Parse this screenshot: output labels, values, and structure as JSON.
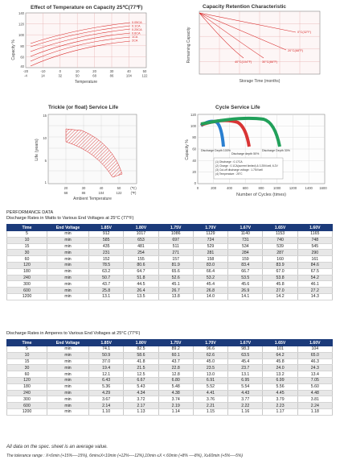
{
  "charts": {
    "temp_capacity": {
      "title": "Effect of Temperature on Capacity  25℃(77℉)",
      "ylabel": "Capacity %",
      "xlabel": "Temperature",
      "y_ticks": [
        "140",
        "120",
        "100",
        "80",
        "60",
        "40"
      ],
      "x_ticks_c": [
        "-20",
        "-10",
        "0",
        "10",
        "20",
        "30",
        "40",
        "50"
      ],
      "x_ticks_f": [
        "-4",
        "14",
        "32",
        "50",
        "68",
        "86",
        "104",
        "122"
      ],
      "series_labels": [
        "0.05CA",
        "0.1CA",
        "0.25CA",
        "0.6CA",
        "1CA",
        "2CA"
      ],
      "series_colors": [
        "#e23b3b",
        "#e23b3b",
        "#e23b3b",
        "#e23b3b",
        "#e23b3b",
        "#e23b3b"
      ]
    },
    "capacity_retention": {
      "title": "Capacity Retention Characteristic",
      "ylabel": "Remaining Capacity",
      "xlabel": "Storage Time (months)",
      "series_labels": [
        "0°C(32°F)",
        "20°C(68°F)",
        "30°C(86°F)",
        "40°C(104°F)"
      ]
    },
    "float_life": {
      "title": "Trickle (or float) Service Life",
      "ylabel": "Life (years)",
      "xlabel": "Ambient Temperature",
      "y_ticks": [
        "15",
        "10",
        "5",
        "1"
      ],
      "x_ticks_c": [
        "20",
        "30",
        "40",
        "50",
        "(℃)"
      ],
      "x_ticks_f": [
        "68",
        "86",
        "104",
        "122",
        "(℉)"
      ]
    },
    "cycle_life": {
      "title": "Cycle Service Life",
      "ylabel": "Capacity %",
      "xlabel": "Number of Cycles (times)",
      "y_ticks": [
        "120",
        "100",
        "80",
        "60",
        "40",
        "20",
        "0"
      ],
      "x_ticks": [
        "0",
        "200",
        "400",
        "600",
        "800",
        "1000",
        "1200",
        "1400",
        "1600"
      ],
      "series_labels": [
        "Discharge Depth 100%",
        "Discharge depth 50%",
        "Discharge Depth 30%"
      ],
      "series_colors": [
        "#2a7fd0",
        "#d93434",
        "#21a05a"
      ],
      "legend": [
        "(1) Discharge : 0.17CA",
        "(2) Charge : 0.1CA(current limited) & 0.25V/cell, 6.2V",
        "(3) Cut-off discharge voltage : 1.75V/cell",
        "(4) Temperature : 25°C"
      ]
    }
  },
  "performance_title": "PERFORMANCE DATA",
  "table_watts": {
    "caption": "Discharge Rates in Watts to Various End Voltages at 25°C (77°F)",
    "headers": [
      "Time",
      "End Voltage",
      "1.85V",
      "1.80V",
      "1.75V",
      "1.70V",
      "1.67V",
      "1.65V",
      "1.60V"
    ],
    "rows": [
      [
        "5",
        "min",
        "912",
        "1017",
        "1086",
        "1129",
        "1140",
        "1153",
        "1165"
      ],
      [
        "10",
        "min",
        "585",
        "653",
        "697",
        "724",
        "731",
        "740",
        "748"
      ],
      [
        "15",
        "min",
        "435",
        "481",
        "511",
        "529",
        "534",
        "539",
        "545"
      ],
      [
        "30",
        "min",
        "231",
        "254",
        "271",
        "281",
        "284",
        "287",
        "290"
      ],
      [
        "60",
        "min",
        "152",
        "155",
        "157",
        "158",
        "159",
        "160",
        "161"
      ],
      [
        "120",
        "min",
        "78.5",
        "80.6",
        "81.9",
        "83.0",
        "83.4",
        "83.9",
        "84.6"
      ],
      [
        "180",
        "min",
        "63.2",
        "64.7",
        "65.6",
        "66.4",
        "66.7",
        "67.0",
        "67.5"
      ],
      [
        "240",
        "min",
        "50.7",
        "51.8",
        "52.6",
        "53.2",
        "53.5",
        "53.8",
        "54.2"
      ],
      [
        "300",
        "min",
        "43.7",
        "44.5",
        "45.1",
        "45.4",
        "45.6",
        "45.8",
        "46.1"
      ],
      [
        "600",
        "min",
        "25.8",
        "26.4",
        "26.7",
        "26.8",
        "26.9",
        "27.0",
        "27.2"
      ],
      [
        "1200",
        "min",
        "13.1",
        "13.5",
        "13.8",
        "14.0",
        "14.1",
        "14.2",
        "14.3"
      ]
    ]
  },
  "table_amps": {
    "caption": "Discharge Rates in Amperes to Various End Voltages at 25°C (77°F)",
    "headers": [
      "Time",
      "End Voltage",
      "1.85V",
      "1.80V",
      "1.75V",
      "1.70V",
      "1.67V",
      "1.65V",
      "1.60V"
    ],
    "rows": [
      [
        "5",
        "min",
        "74.1",
        "82.5",
        "89.2",
        "96.6",
        "98.3",
        "101",
        "104"
      ],
      [
        "10",
        "min",
        "50.9",
        "58.6",
        "60.1",
        "62.6",
        "63.5",
        "64.2",
        "65.0"
      ],
      [
        "15",
        "min",
        "37.0",
        "41.8",
        "43.7",
        "45.0",
        "45.4",
        "45.8",
        "46.3"
      ],
      [
        "30",
        "min",
        "19.4",
        "21.5",
        "22.8",
        "23.5",
        "23.7",
        "24.0",
        "24.3"
      ],
      [
        "60",
        "min",
        "12.1",
        "12.5",
        "12.8",
        "13.0",
        "13.1",
        "13.2",
        "13.4"
      ],
      [
        "120",
        "min",
        "6.43",
        "6.67",
        "6.80",
        "6.91",
        "6.95",
        "6.99",
        "7.05"
      ],
      [
        "180",
        "min",
        "5.36",
        "5.43",
        "5.48",
        "5.52",
        "5.54",
        "5.56",
        "5.60"
      ],
      [
        "240",
        "min",
        "4.29",
        "4.34",
        "4.38",
        "4.41",
        "4.43",
        "4.45",
        "4.48"
      ],
      [
        "300",
        "min",
        "3.67",
        "3.72",
        "3.74",
        "3.76",
        "3.77",
        "3.79",
        "3.81"
      ],
      [
        "600",
        "min",
        "2.14",
        "2.17",
        "2.19",
        "2.21",
        "2.22",
        "2.23",
        "2.24"
      ],
      [
        "1200",
        "min",
        "1.10",
        "1.13",
        "1.14",
        "1.15",
        "1.16",
        "1.17",
        "1.18"
      ]
    ]
  },
  "footer": {
    "note": "All data on the spec. sheet is an average value.",
    "tolerance": "The tolerance range : X<6min (+15%—-15%), 6min≤X<10min (+12%—-12%),10min ≤X < 60min (+8% —-8%), X≥60min (+5%—-5%)"
  }
}
